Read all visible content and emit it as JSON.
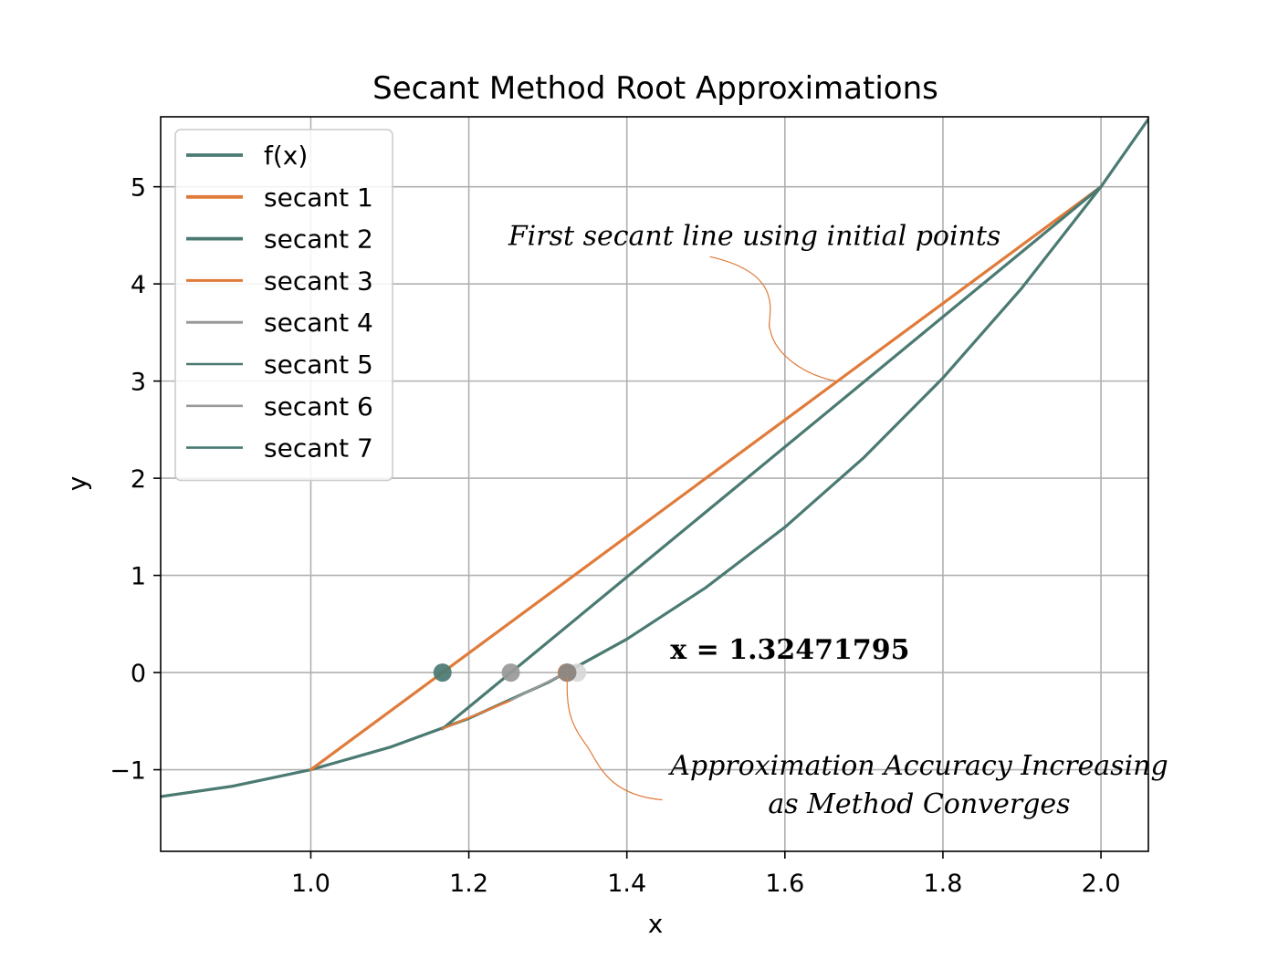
{
  "chart_data": {
    "type": "line",
    "title": "Secant Method Root Approximations",
    "xlabel": "x",
    "ylabel": "y",
    "xlim": [
      0.81,
      2.06
    ],
    "ylim": [
      -1.84,
      5.72
    ],
    "xticks": [
      1.0,
      1.2,
      1.4,
      1.6,
      1.8,
      2.0
    ],
    "xtick_labels": [
      "1.0",
      "1.2",
      "1.4",
      "1.6",
      "1.8",
      "2.0"
    ],
    "yticks": [
      -1,
      0,
      1,
      2,
      3,
      4,
      5
    ],
    "ytick_labels": [
      "−1",
      "0",
      "1",
      "2",
      "3",
      "4",
      "5"
    ],
    "grid": true,
    "legend_position": "top-left",
    "colors": {
      "teal": "#4a7a72",
      "orange": "#e07b39",
      "gray": "#999999",
      "lightgray": "#cccccc"
    },
    "function": {
      "name": "f(x)",
      "color": "#4a7a72",
      "x": [
        0.8,
        0.9,
        1.0,
        1.1,
        1.2,
        1.3,
        1.4,
        1.5,
        1.6,
        1.7,
        1.8,
        1.9,
        2.0,
        2.1
      ],
      "y": [
        -1.288,
        -1.171,
        -1.0,
        -0.769,
        -0.472,
        -0.103,
        0.344,
        0.875,
        1.496,
        2.213,
        3.032,
        3.959,
        5.0,
        6.161
      ]
    },
    "series": [
      {
        "name": "secant 1",
        "color": "#e07b39",
        "width": 3.2,
        "x": [
          1.0,
          2.0
        ],
        "y": [
          -1.0,
          5.0
        ]
      },
      {
        "name": "secant 2",
        "color": "#4a7a72",
        "width": 3.2,
        "x": [
          1.1667,
          2.0
        ],
        "y": [
          -0.5787,
          5.0
        ]
      },
      {
        "name": "secant 3",
        "color": "#e07b39",
        "width": 2.4,
        "x": [
          1.1667,
          1.2531
        ],
        "y": [
          -0.5787,
          -0.2854
        ]
      },
      {
        "name": "secant 4",
        "color": "#999999",
        "width": 2.4,
        "x": [
          1.2531,
          1.3372
        ],
        "y": [
          -0.2854,
          0.0539
        ]
      },
      {
        "name": "secant 5",
        "color": "#4a7a72",
        "width": 2.0,
        "x": [
          1.3372,
          1.3239
        ],
        "y": [
          0.0539,
          -0.0037
        ]
      },
      {
        "name": "secant 6",
        "color": "#999999",
        "width": 2.0,
        "x": [
          1.3239,
          1.3247
        ],
        "y": [
          -0.0037,
          0.0
        ]
      },
      {
        "name": "secant 7",
        "color": "#4a7a72",
        "width": 2.0,
        "x": [
          1.3247,
          1.32472
        ],
        "y": [
          0.0,
          0.0
        ]
      }
    ],
    "root_markers": [
      {
        "x": 1.1667,
        "y": 0,
        "color": "#4a7a72"
      },
      {
        "x": 1.2531,
        "y": 0,
        "color": "#999999"
      },
      {
        "x": 1.3372,
        "y": 0,
        "color": "#d8d8d8"
      },
      {
        "x": 1.3239,
        "y": 0,
        "color": "#e07b39"
      },
      {
        "x": 1.3247,
        "y": 0,
        "color": "#888888"
      }
    ],
    "annotations": [
      {
        "text": "First secant line using initial points",
        "style": "italic",
        "text_x": 1.25,
        "text_y": 4.4,
        "point_x": 1.665,
        "point_y": 3.0,
        "arrow_start_x": 1.505,
        "arrow_start_y": 4.28
      },
      {
        "text": "x = 1.32471795",
        "style": "bold",
        "text_x": 1.455,
        "text_y": 0.14
      },
      {
        "text_lines": [
          "Approximation Accuracy Increasing",
          "as Method Converges"
        ],
        "style": "italic",
        "text_x": 1.77,
        "text_y": -1.05,
        "point_x": 1.3247,
        "point_y": -0.05,
        "arrow_start_x": 1.445,
        "arrow_start_y": -1.31
      }
    ]
  }
}
